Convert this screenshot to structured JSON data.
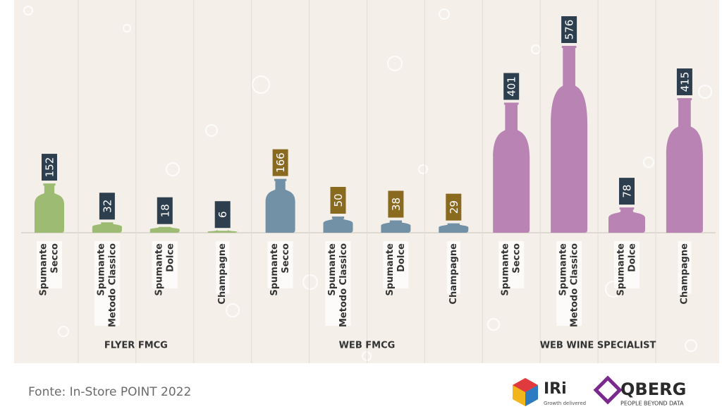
{
  "chart_data": {
    "type": "bottle-bar",
    "groups": [
      {
        "name": "FLYER FMCG",
        "color": "#9dbb72",
        "label_color": "#2d3e4e",
        "categories": [
          [
            "Spumante",
            "Secco"
          ],
          [
            "Spumante",
            "Metodo Classico"
          ],
          [
            "Spumante",
            "Dolce"
          ],
          [
            "Champagne"
          ]
        ],
        "values": [
          152,
          32,
          18,
          6
        ]
      },
      {
        "name": "WEB FMCG",
        "color": "#7290a6",
        "label_color": "#8a6a1f",
        "categories": [
          [
            "Spumante",
            "Secco"
          ],
          [
            "Spumante",
            "Metodo Classico"
          ],
          [
            "Spumante",
            "Dolce"
          ],
          [
            "Champagne"
          ]
        ],
        "values": [
          166,
          50,
          38,
          29
        ]
      },
      {
        "name": "WEB WINE SPECIALIST",
        "color": "#b984b4",
        "label_color": "#2d3e4e",
        "categories": [
          [
            "Spumante",
            "Secco"
          ],
          [
            "Spumante",
            "Metodo Classico"
          ],
          [
            "Spumante",
            "Dolce"
          ],
          [
            "Champagne"
          ]
        ],
        "values": [
          401,
          576,
          78,
          415
        ]
      }
    ]
  },
  "footer": {
    "source": "Fonte: In-Store POINT 2022",
    "logos": [
      {
        "name": "IRi",
        "tagline": "Growth delivered"
      },
      {
        "name": "QBERG",
        "tagline": "PEOPLE BEYOND DATA"
      }
    ]
  }
}
